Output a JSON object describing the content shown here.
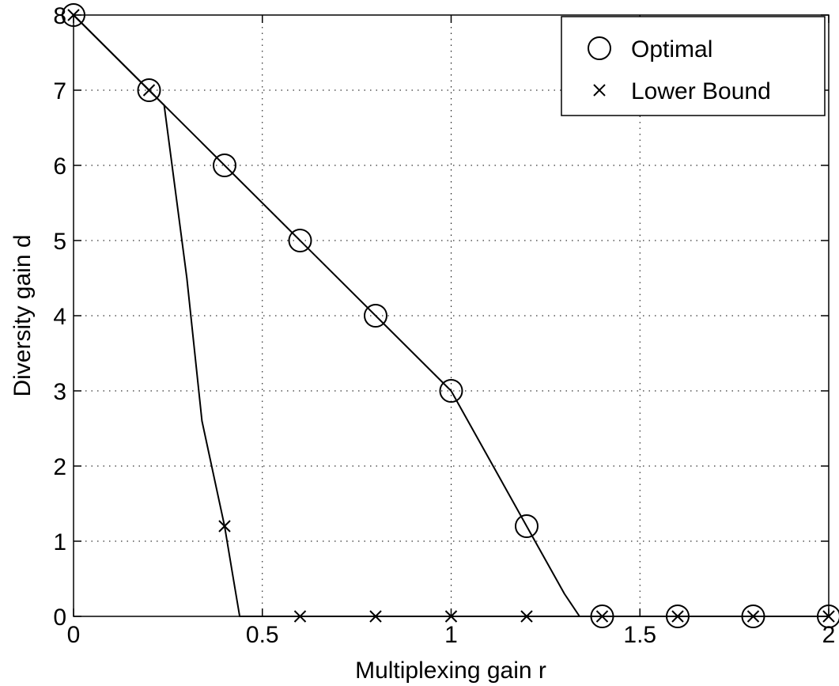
{
  "chart_data": {
    "type": "line",
    "title": "",
    "xlabel": "Multiplexing gain r",
    "ylabel": "Diversity gain d",
    "xlim": [
      0,
      2
    ],
    "ylim": [
      0,
      8
    ],
    "xticks": [
      0,
      0.5,
      1,
      1.5,
      2
    ],
    "xtick_labels": [
      "0",
      "0.5",
      "1",
      "1.5",
      "2"
    ],
    "yticks": [
      0,
      1,
      2,
      3,
      4,
      5,
      6,
      7,
      8
    ],
    "ytick_labels": [
      "0",
      "1",
      "2",
      "3",
      "4",
      "5",
      "6",
      "7",
      "8"
    ],
    "grid": true,
    "legend_position": "top-right",
    "series": [
      {
        "name": "Optimal",
        "marker": "circle",
        "color": "#000000",
        "x": [
          0,
          0.2,
          0.4,
          0.6,
          0.8,
          1.0,
          1.2,
          1.4,
          1.6,
          1.8,
          2.0
        ],
        "y": [
          8,
          7,
          6,
          5,
          4,
          3,
          1.2,
          0,
          0,
          0,
          0
        ],
        "curve": {
          "x": [
            0,
            0.2,
            0.4,
            0.6,
            0.8,
            1.0,
            1.1,
            1.2,
            1.3,
            1.34,
            1.4,
            1.6,
            1.8,
            2.0
          ],
          "y": [
            8,
            7,
            6,
            5,
            4,
            3,
            2.1,
            1.2,
            0.3,
            0,
            0,
            0,
            0,
            0
          ]
        }
      },
      {
        "name": "Lower Bound",
        "marker": "x",
        "color": "#000000",
        "x": [
          0,
          0.2,
          0.4,
          0.6,
          0.8,
          1.0,
          1.2,
          1.4,
          1.6,
          1.8,
          2.0
        ],
        "y": [
          8,
          7,
          1.2,
          0,
          0,
          0,
          0,
          0,
          0,
          0,
          0
        ],
        "curve": {
          "x": [
            0,
            0.2,
            0.24,
            0.3,
            0.34,
            0.4,
            0.42,
            0.44,
            0.6,
            0.8,
            1.0,
            1.2,
            1.4,
            1.6,
            1.8,
            2.0
          ],
          "y": [
            8,
            7,
            6.8,
            4.5,
            2.6,
            1.2,
            0.6,
            0,
            0,
            0,
            0,
            0,
            0,
            0,
            0,
            0
          ]
        }
      }
    ]
  }
}
